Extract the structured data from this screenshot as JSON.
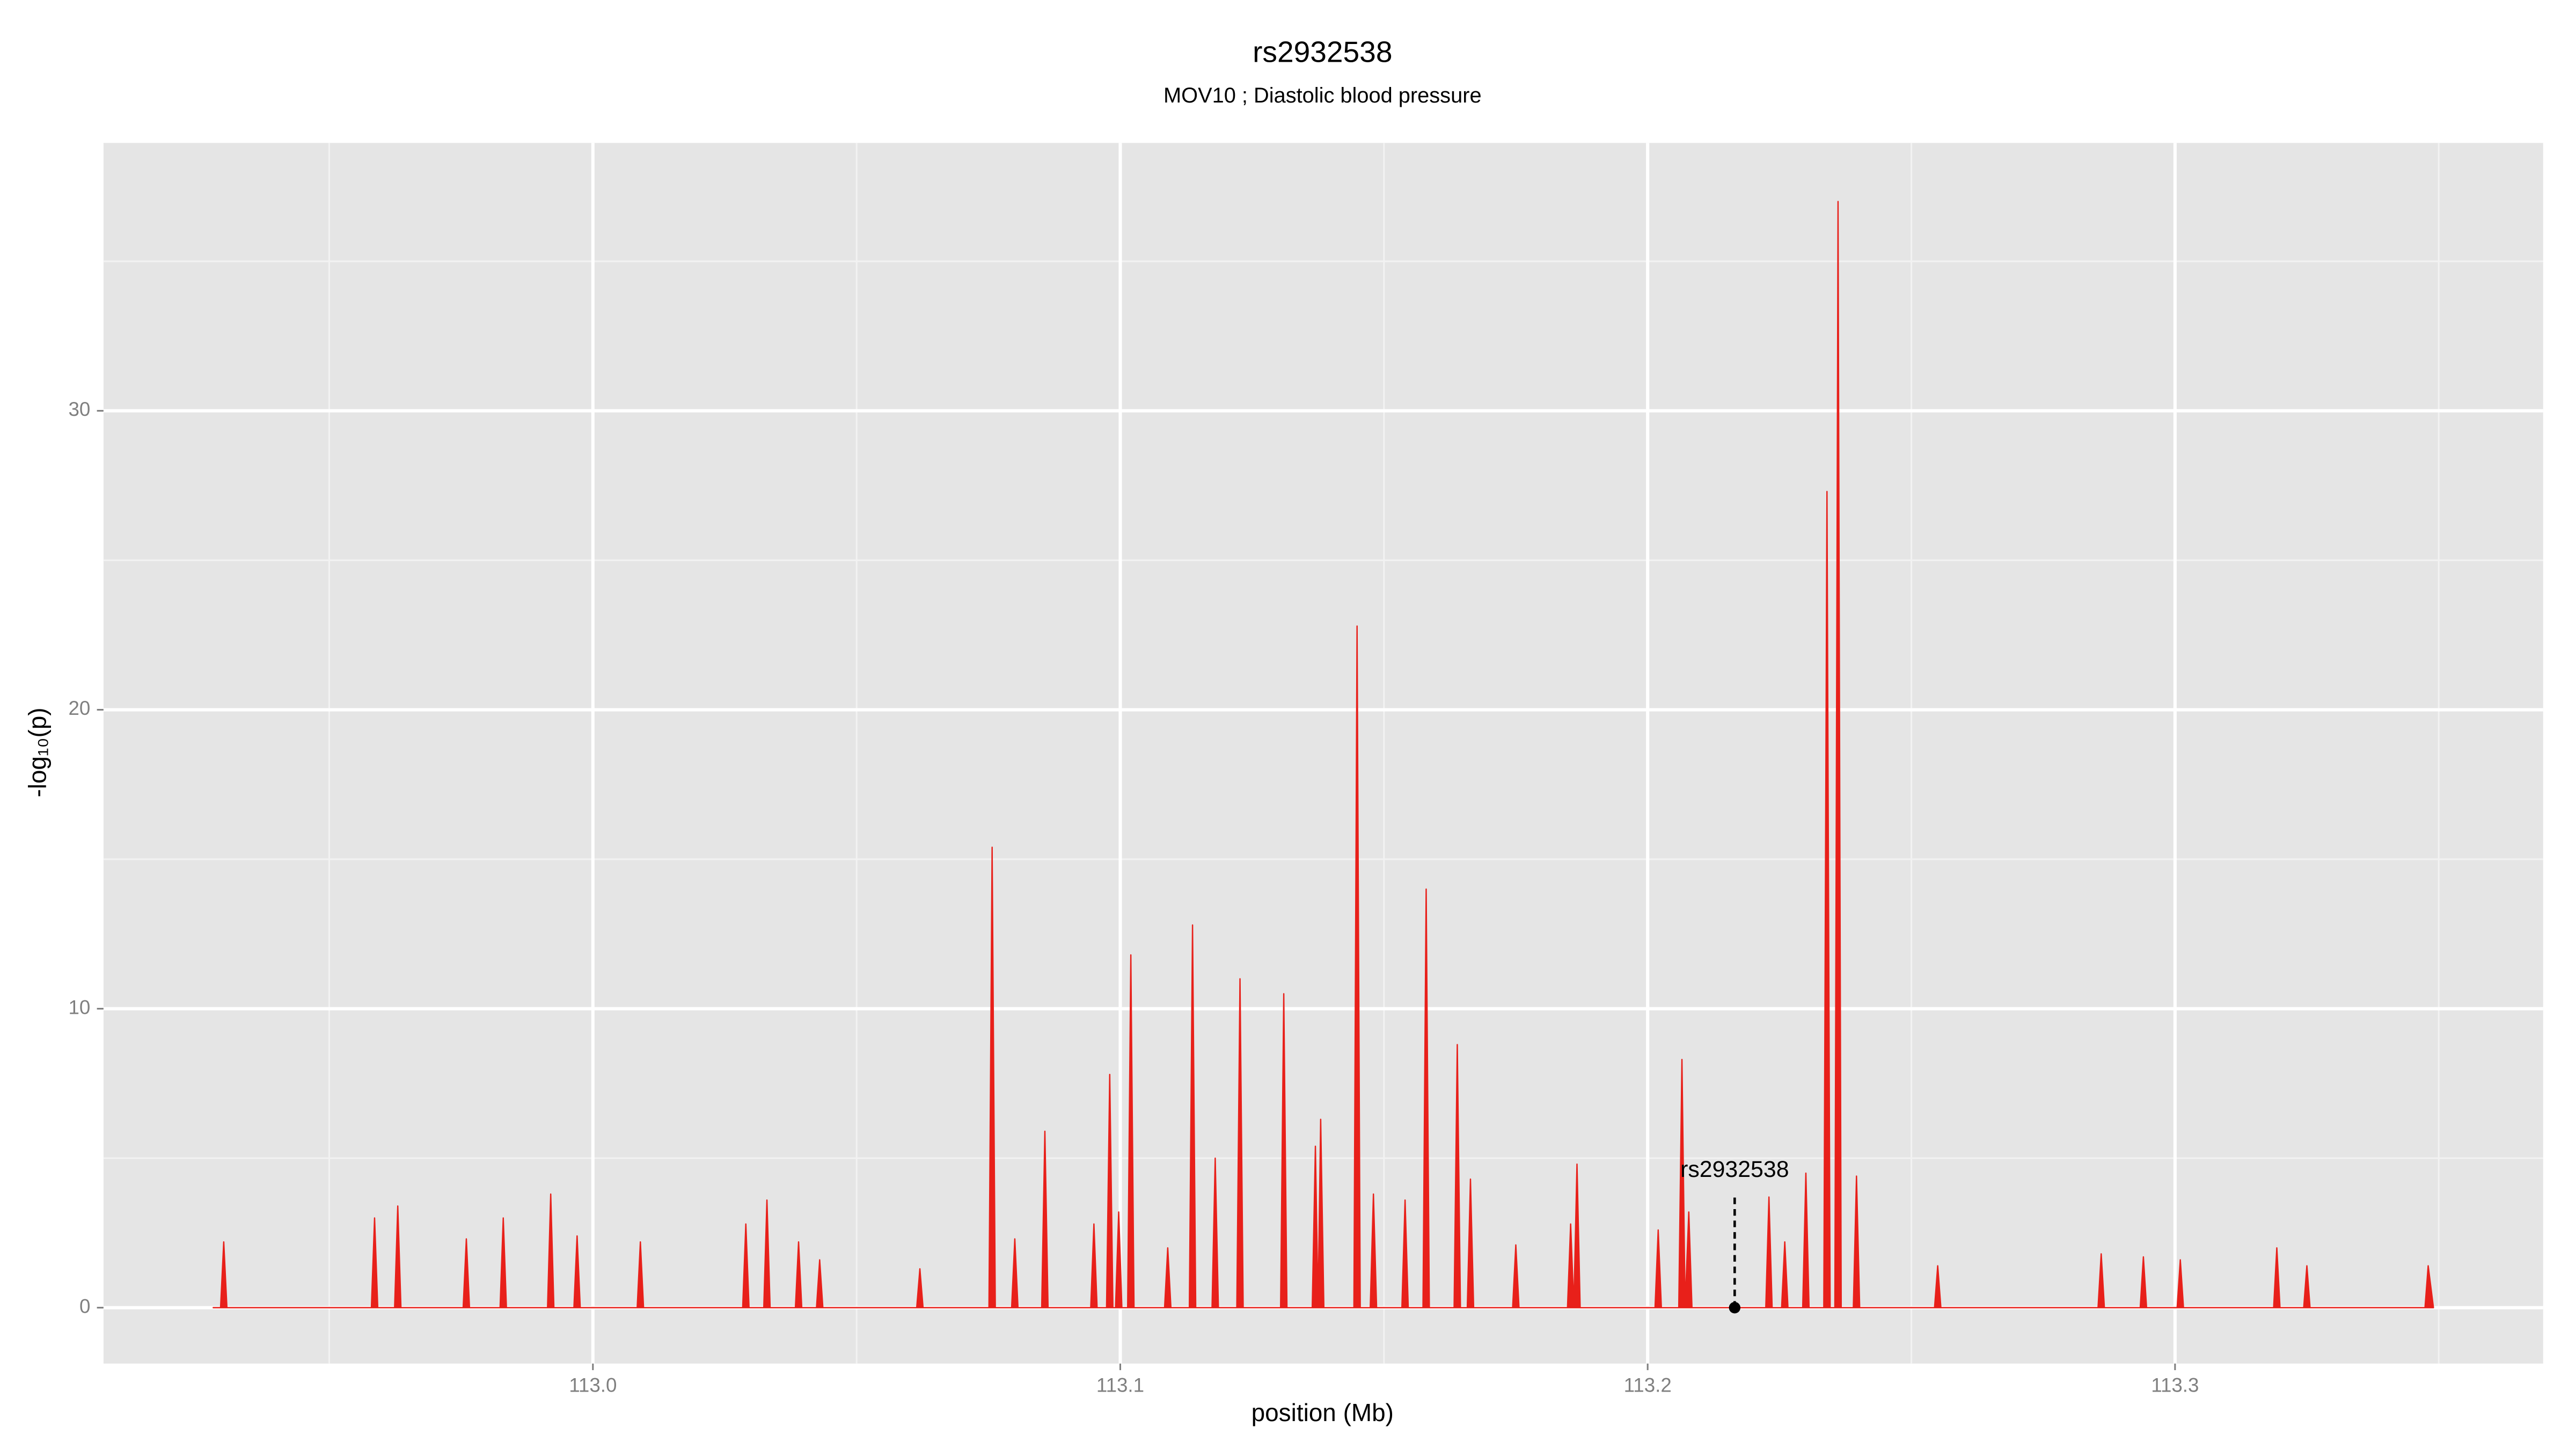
{
  "chart_data": {
    "type": "area",
    "title": "rs2932538",
    "subtitle": "MOV10 ; Diastolic blood pressure",
    "x_label": "position (Mb)",
    "y_label": "-log₁₀(p)",
    "xlim": [
      112.9072,
      113.3698
    ],
    "ylim": [
      -1.87,
      38.96
    ],
    "xticks": [
      {
        "value": 113,
        "label": "113.0"
      },
      113.1,
      113.2,
      113.3
    ],
    "yticks": [
      0,
      10,
      20,
      30
    ],
    "grid": true,
    "series": [
      {
        "color": "#e8201a",
        "x": [
          112.928,
          112.9294,
          112.93,
          112.9306,
          112.958,
          112.9586,
          112.9592,
          112.9624,
          112.963,
          112.9636,
          112.9754,
          112.976,
          112.9766,
          112.9824,
          112.983,
          112.9836,
          112.9914,
          112.992,
          112.9926,
          112.9964,
          112.997,
          112.9976,
          113.0084,
          113.009,
          113.0096,
          113.0284,
          113.029,
          113.0296,
          113.0324,
          113.033,
          113.0336,
          113.0384,
          113.039,
          113.0396,
          113.0424,
          113.043,
          113.0436,
          113.0614,
          113.062,
          113.0626,
          113.0751,
          113.0757,
          113.0763,
          113.0794,
          113.08,
          113.0806,
          113.0851,
          113.0857,
          113.0863,
          113.0944,
          113.095,
          113.0956,
          113.0974,
          113.098,
          113.0986,
          113.0991,
          113.0997,
          113.1003,
          113.1014,
          113.102,
          113.1026,
          113.1084,
          113.109,
          113.1096,
          113.1131,
          113.1137,
          113.1143,
          113.1174,
          113.118,
          113.1186,
          113.1221,
          113.1227,
          113.1233,
          113.1304,
          113.131,
          113.1316,
          113.1364,
          113.137,
          113.1375,
          113.138,
          113.1386,
          113.1443,
          113.1449,
          113.1455,
          113.1474,
          113.148,
          113.1486,
          113.1534,
          113.154,
          113.1546,
          113.1574,
          113.158,
          113.1586,
          113.1633,
          113.1639,
          113.1645,
          113.1658,
          113.1664,
          113.167,
          113.1744,
          113.175,
          113.1756,
          113.1848,
          113.1854,
          113.186,
          113.1866,
          113.1872,
          113.2014,
          113.202,
          113.2026,
          113.2059,
          113.2065,
          113.2071,
          113.2078,
          113.2084,
          113.2224,
          113.223,
          113.2236,
          113.2254,
          113.226,
          113.2266,
          113.2294,
          113.23,
          113.2306,
          113.2334,
          113.234,
          113.2346,
          113.2355,
          113.2361,
          113.2367,
          113.239,
          113.2396,
          113.2402,
          113.2544,
          113.255,
          113.2556,
          113.2854,
          113.286,
          113.2866,
          113.2934,
          113.294,
          113.2946,
          113.3004,
          113.301,
          113.3016,
          113.3187,
          113.3193,
          113.3199,
          113.3244,
          113.325,
          113.3256,
          113.3474,
          113.348,
          113.349
        ],
        "values": [
          0,
          0,
          2.2,
          0,
          0,
          3.0,
          0,
          0,
          3.4,
          0,
          0,
          2.3,
          0,
          0,
          3.0,
          0,
          0,
          3.8,
          0,
          0,
          2.4,
          0,
          0,
          2.2,
          0,
          0,
          2.8,
          0,
          0,
          3.6,
          0,
          0,
          2.2,
          0,
          0,
          1.6,
          0,
          0,
          1.3,
          0,
          0,
          15.4,
          0,
          0,
          2.3,
          0,
          0,
          5.9,
          0,
          0,
          2.8,
          0,
          0,
          7.8,
          0,
          0,
          3.2,
          0,
          0,
          11.8,
          0,
          0,
          2.0,
          0,
          0,
          12.8,
          0,
          0,
          5.0,
          0,
          0,
          11.0,
          0,
          0,
          10.5,
          0,
          0,
          5.4,
          0,
          6.3,
          0,
          0,
          22.8,
          0,
          0,
          3.8,
          0,
          0,
          3.6,
          0,
          0,
          14.0,
          0,
          0,
          8.8,
          0,
          0,
          4.3,
          0,
          0,
          2.1,
          0,
          0,
          2.8,
          0,
          4.8,
          0,
          0,
          2.6,
          0,
          0,
          8.3,
          0,
          3.2,
          0,
          0,
          3.7,
          0,
          0,
          2.2,
          0,
          0,
          4.5,
          0,
          0,
          27.3,
          0,
          0,
          37.0,
          0,
          0,
          4.4,
          0,
          0,
          1.4,
          0,
          0,
          1.8,
          0,
          0,
          1.7,
          0,
          0,
          1.6,
          0,
          0,
          2.0,
          0,
          0,
          1.4,
          0,
          0,
          1.4,
          0
        ]
      }
    ],
    "annotation": {
      "text": "rs2932538",
      "x": 113.2165,
      "y": 0,
      "line_top": 3.7
    }
  }
}
